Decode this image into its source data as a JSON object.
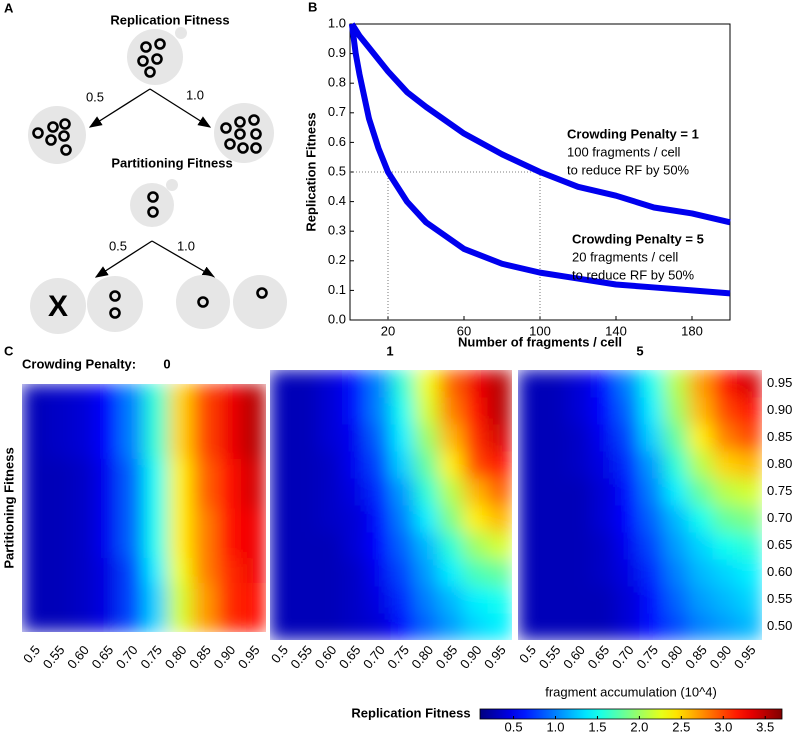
{
  "panel_labels": [
    "A",
    "B",
    "C"
  ],
  "diagram": {
    "replication_title": "Replication Fitness",
    "replication_edges": [
      "0.5",
      "1.0"
    ],
    "partitioning_title": "Partitioning Fitness",
    "partitioning_edges": [
      "0.5",
      "1.0"
    ],
    "lost_cell": "X"
  },
  "chart_data": [
    {
      "type": "line",
      "xlabel": "Number of fragments / cell",
      "ylabel": "Replication Fitness",
      "x": [
        1,
        3,
        5,
        10,
        15,
        20,
        30,
        40,
        60,
        80,
        100,
        120,
        140,
        160,
        180,
        200
      ],
      "series": [
        {
          "name": "Crowding Penalty = 1",
          "color": "#0000ee",
          "values": [
            1.0,
            0.98,
            0.96,
            0.92,
            0.88,
            0.84,
            0.77,
            0.72,
            0.63,
            0.56,
            0.5,
            0.45,
            0.42,
            0.38,
            0.36,
            0.33
          ]
        },
        {
          "name": "Crowding Penalty = 5",
          "color": "#0000ee",
          "values": [
            1.0,
            0.9,
            0.83,
            0.68,
            0.58,
            0.5,
            0.4,
            0.33,
            0.24,
            0.19,
            0.16,
            0.14,
            0.12,
            0.11,
            0.1,
            0.09
          ]
        }
      ],
      "annotations": [
        [
          "100 fragments / cell",
          "to reduce RF by 50%"
        ],
        [
          "20 fragments / cell",
          "to reduce RF by 50%"
        ]
      ],
      "reference_lines": {
        "y": 0.5,
        "x": [
          20,
          100
        ]
      },
      "xlim": [
        0,
        200
      ],
      "ylim": [
        0,
        1
      ],
      "xticks": [
        20,
        60,
        100,
        140,
        180
      ],
      "yticks": [
        {
          "value": 0,
          "label": "0.0"
        },
        0.1,
        0.2,
        0.3,
        0.4,
        0.5,
        0.6,
        0.7,
        0.8,
        0.9,
        {
          "value": 1,
          "label": "1.0"
        }
      ]
    },
    {
      "type": "heatmap",
      "title_prefix": "Crowding Penalty:",
      "title": "0",
      "ylabel": "Partitioning Fitness",
      "colormap": "jet",
      "zlim": [
        0.1,
        3.7
      ],
      "categories": [
        "0.5",
        "0.55",
        "0.60",
        "0.65",
        "0.70",
        "0.75",
        "0.80",
        "0.85",
        "0.90",
        "0.95"
      ],
      "values": [
        [
          0.3,
          0.3,
          0.35,
          0.45,
          0.8,
          1.3,
          2.2,
          2.7,
          3.1,
          3.2
        ],
        [
          0.3,
          0.3,
          0.35,
          0.45,
          0.8,
          1.3,
          2.2,
          2.7,
          3.1,
          3.2
        ],
        [
          0.3,
          0.3,
          0.35,
          0.45,
          0.8,
          1.4,
          2.3,
          2.8,
          3.1,
          3.3
        ],
        [
          0.3,
          0.3,
          0.35,
          0.5,
          0.9,
          1.5,
          2.4,
          2.8,
          3.2,
          3.3
        ],
        [
          0.3,
          0.3,
          0.35,
          0.5,
          0.9,
          1.5,
          2.4,
          2.8,
          3.2,
          3.3
        ],
        [
          0.3,
          0.3,
          0.35,
          0.5,
          0.9,
          1.5,
          2.4,
          2.9,
          3.2,
          3.4
        ],
        [
          0.3,
          0.3,
          0.35,
          0.5,
          0.9,
          1.5,
          2.4,
          2.9,
          3.2,
          3.4
        ],
        [
          0.3,
          0.35,
          0.4,
          0.55,
          1.0,
          1.6,
          2.5,
          3.0,
          3.3,
          3.5
        ],
        [
          0.3,
          0.35,
          0.4,
          0.55,
          1.0,
          1.6,
          2.5,
          3.0,
          3.3,
          3.5
        ],
        [
          0.3,
          0.35,
          0.4,
          0.55,
          1.0,
          1.6,
          2.5,
          3.0,
          3.3,
          3.5
        ]
      ]
    },
    {
      "type": "heatmap",
      "title": "1",
      "xlabel": "Replication Fitness",
      "colormap": "jet",
      "zlim": [
        0.1,
        3.7
      ],
      "categories": [
        "0.5",
        "0.55",
        "0.60",
        "0.65",
        "0.70",
        "0.75",
        "0.80",
        "0.85",
        "0.90",
        "0.95"
      ],
      "values": [
        [
          0.3,
          0.3,
          0.3,
          0.35,
          0.4,
          0.6,
          0.9,
          1.1,
          1.3,
          1.4
        ],
        [
          0.3,
          0.3,
          0.3,
          0.35,
          0.45,
          0.7,
          1.0,
          1.2,
          1.4,
          1.5
        ],
        [
          0.3,
          0.3,
          0.3,
          0.35,
          0.5,
          0.8,
          1.1,
          1.4,
          1.7,
          1.8
        ],
        [
          0.3,
          0.3,
          0.3,
          0.4,
          0.55,
          0.9,
          1.2,
          1.6,
          2.0,
          2.2
        ],
        [
          0.3,
          0.3,
          0.35,
          0.4,
          0.6,
          1.0,
          1.4,
          1.9,
          2.4,
          2.6
        ],
        [
          0.3,
          0.3,
          0.35,
          0.45,
          0.7,
          1.1,
          1.6,
          2.1,
          2.6,
          2.9
        ],
        [
          0.3,
          0.3,
          0.35,
          0.5,
          0.8,
          1.3,
          1.8,
          2.4,
          3.0,
          3.2
        ],
        [
          0.3,
          0.3,
          0.4,
          0.5,
          0.9,
          1.4,
          2.0,
          2.6,
          3.1,
          3.4
        ],
        [
          0.3,
          0.3,
          0.4,
          0.6,
          1.0,
          1.5,
          2.2,
          2.8,
          3.2,
          3.5
        ],
        [
          0.3,
          0.3,
          0.4,
          0.6,
          1.0,
          1.6,
          2.3,
          2.9,
          3.3,
          3.5
        ]
      ]
    },
    {
      "type": "heatmap",
      "title": "5",
      "colormap": "jet",
      "zlim": [
        0.1,
        3.7
      ],
      "categories": [
        "0.5",
        "0.55",
        "0.60",
        "0.65",
        "0.70",
        "0.75",
        "0.80",
        "0.85",
        "0.90",
        "0.95"
      ],
      "y_categories": [
        "0.50",
        "0.55",
        "0.60",
        "0.65",
        "0.70",
        "0.75",
        "0.80",
        "0.85",
        "0.90",
        "0.95"
      ],
      "values": [
        [
          0.3,
          0.3,
          0.3,
          0.3,
          0.4,
          0.6,
          0.8,
          1.0,
          1.1,
          1.2
        ],
        [
          0.3,
          0.3,
          0.3,
          0.3,
          0.4,
          0.6,
          0.9,
          1.1,
          1.2,
          1.3
        ],
        [
          0.3,
          0.3,
          0.3,
          0.35,
          0.45,
          0.7,
          1.0,
          1.2,
          1.3,
          1.4
        ],
        [
          0.3,
          0.3,
          0.3,
          0.35,
          0.5,
          0.8,
          1.1,
          1.3,
          1.5,
          1.6
        ],
        [
          0.3,
          0.3,
          0.3,
          0.4,
          0.55,
          0.9,
          1.2,
          1.5,
          1.8,
          1.9
        ],
        [
          0.3,
          0.3,
          0.3,
          0.4,
          0.6,
          1.0,
          1.4,
          1.8,
          2.1,
          2.2
        ],
        [
          0.3,
          0.3,
          0.35,
          0.45,
          0.7,
          1.1,
          1.6,
          2.1,
          2.5,
          2.6
        ],
        [
          0.3,
          0.3,
          0.35,
          0.5,
          0.8,
          1.3,
          1.8,
          2.4,
          2.8,
          3.0
        ],
        [
          0.3,
          0.3,
          0.4,
          0.55,
          0.9,
          1.4,
          2.0,
          2.6,
          3.0,
          3.2
        ],
        [
          0.3,
          0.3,
          0.4,
          0.6,
          1.0,
          1.5,
          2.1,
          2.7,
          3.2,
          3.4
        ]
      ],
      "colorbar": {
        "label": "fragment accumulation (10^4)",
        "ticks": [
          0.5,
          {
            "value": 1,
            "label": "1.0"
          },
          1.5,
          {
            "value": 2,
            "label": "2.0"
          },
          2.5,
          {
            "value": 3,
            "label": "3.0"
          },
          3.5
        ]
      }
    }
  ]
}
